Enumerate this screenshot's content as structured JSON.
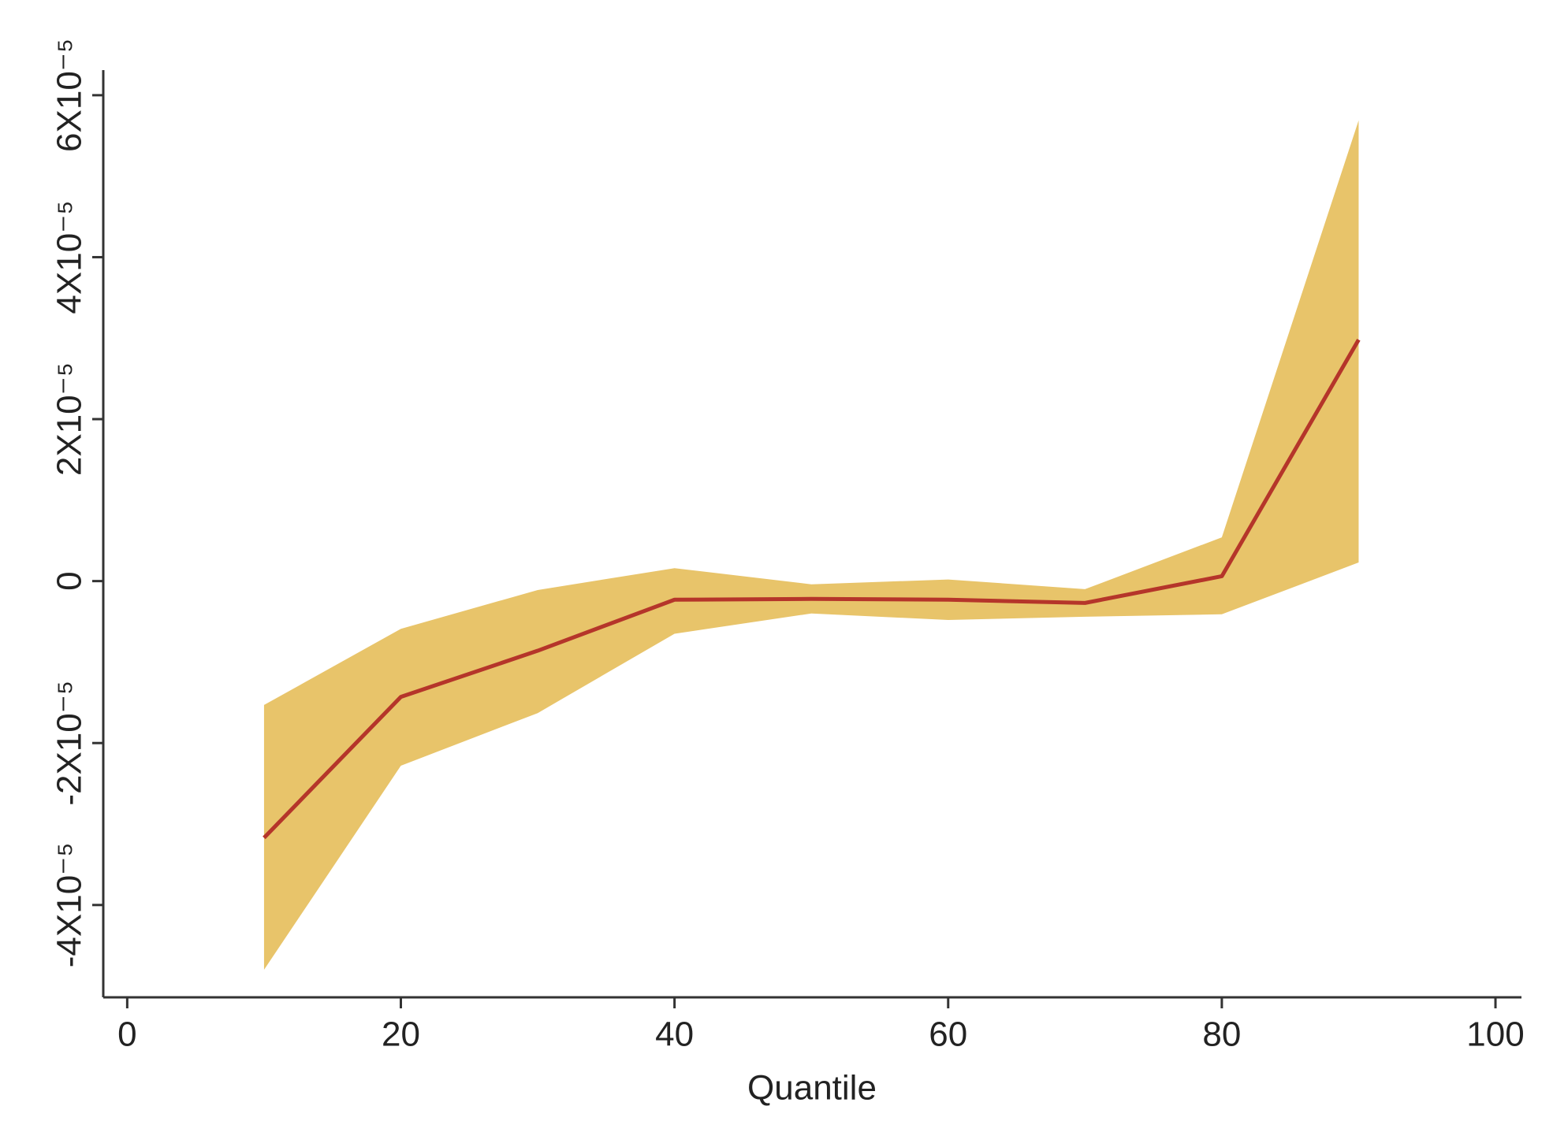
{
  "chart_data": {
    "type": "line",
    "x_label": "Quantile",
    "x": [
      10,
      20,
      30,
      40,
      50,
      60,
      70,
      80,
      90
    ],
    "series": [
      {
        "color": "#b5352a",
        "values": [
          -3.17e-05,
          -1.43e-05,
          -8.6e-06,
          -2.3e-06,
          -2.2e-06,
          -2.3e-06,
          -2.7e-06,
          6e-07,
          2.98e-05
        ]
      }
    ],
    "band": {
      "color": "#e8c46a",
      "upper": [
        -1.53e-05,
        -5.9e-06,
        -1.1e-06,
        1.6e-06,
        -4e-07,
        2e-07,
        -1e-06,
        5.4e-06,
        5.69e-05
      ],
      "lower": [
        -4.8e-05,
        -2.28e-05,
        -1.63e-05,
        -6.5e-06,
        -4e-06,
        -4.8e-06,
        -4.4e-06,
        -4.1e-06,
        2.3e-06
      ]
    },
    "xlim": [
      -1.75,
      101.9
    ],
    "xticks": [
      0,
      20,
      40,
      60,
      80,
      100
    ],
    "ylim": [
      -5.14e-05,
      6.31e-05
    ],
    "yticks": [
      {
        "value": -4e-05,
        "label": "-4X10⁻⁵"
      },
      {
        "value": -2e-05,
        "label": "-2X10⁻⁵"
      },
      0,
      {
        "value": 2e-05,
        "label": "2X10⁻⁵"
      },
      {
        "value": 4e-05,
        "label": "4X10⁻⁵"
      },
      {
        "value": 6e-05,
        "label": "6X10⁻⁵"
      }
    ],
    "grid": false
  }
}
